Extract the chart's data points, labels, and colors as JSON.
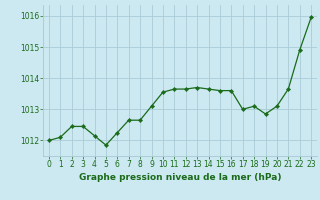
{
  "x": [
    0,
    1,
    2,
    3,
    4,
    5,
    6,
    7,
    8,
    9,
    10,
    11,
    12,
    13,
    14,
    15,
    16,
    17,
    18,
    19,
    20,
    21,
    22,
    23
  ],
  "y": [
    1012.0,
    1012.1,
    1012.45,
    1012.45,
    1012.15,
    1011.85,
    1012.25,
    1012.65,
    1012.65,
    1013.1,
    1013.55,
    1013.65,
    1013.65,
    1013.7,
    1013.65,
    1013.6,
    1013.6,
    1013.0,
    1013.1,
    1012.85,
    1013.1,
    1013.65,
    1014.9,
    1015.95
  ],
  "line_color": "#1a6b1a",
  "marker": "D",
  "marker_size": 2.2,
  "bg_color": "#cce8f0",
  "grid_color": "#aaccd8",
  "xlabel": "Graphe pression niveau de la mer (hPa)",
  "xlabel_color": "#1a6b1a",
  "tick_color": "#1a6b1a",
  "ylim": [
    1011.5,
    1016.35
  ],
  "xlim": [
    -0.5,
    23.5
  ],
  "yticks": [
    1012,
    1013,
    1014,
    1015,
    1016
  ],
  "xtick_labels": [
    "0",
    "1",
    "2",
    "3",
    "4",
    "5",
    "6",
    "7",
    "8",
    "9",
    "10",
    "11",
    "12",
    "13",
    "14",
    "15",
    "16",
    "17",
    "18",
    "19",
    "20",
    "21",
    "22",
    "23"
  ],
  "xlabel_fontsize": 6.5,
  "tick_fontsize": 5.5,
  "linewidth": 0.9
}
